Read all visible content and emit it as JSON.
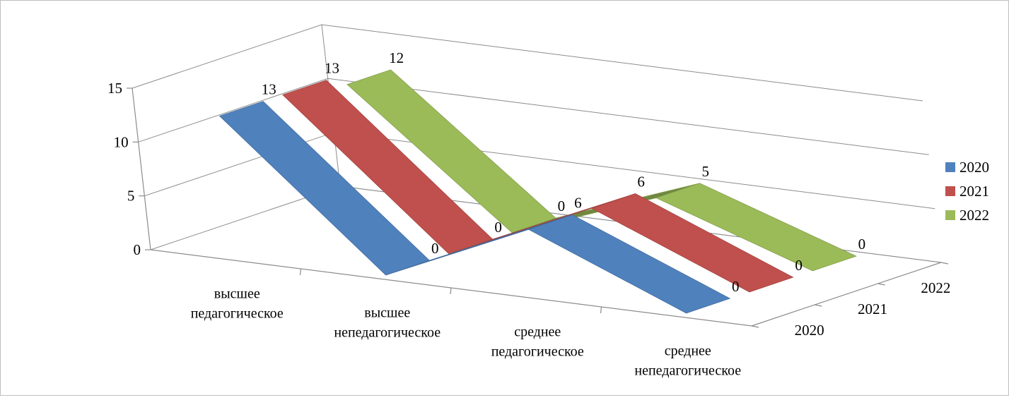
{
  "chart_data": {
    "type": "line",
    "style": "3d-ribbon",
    "categories": [
      "высшее педагогическое",
      "высшее непедагогическое",
      "среднее педагогическое",
      "среднее непедагогическое"
    ],
    "category_lines": [
      [
        "высшее",
        "педагогическое"
      ],
      [
        "высшее",
        "непедагогическое"
      ],
      [
        "среднее",
        "педагогическое"
      ],
      [
        "среднее",
        "непедагогическое"
      ]
    ],
    "series": [
      {
        "name": "2020",
        "values": [
          13,
          0,
          6,
          0
        ],
        "color": "#4F81BD"
      },
      {
        "name": "2021",
        "values": [
          13,
          0,
          6,
          0
        ],
        "color": "#C0504D"
      },
      {
        "name": "2022",
        "values": [
          12,
          0,
          5,
          0
        ],
        "color": "#9BBB59"
      }
    ],
    "depth_labels": [
      "2020",
      "2021",
      "2022"
    ],
    "y_ticks": [
      0,
      5,
      10,
      15
    ],
    "ylim": [
      0,
      15
    ],
    "grid": true,
    "legend_position": "right",
    "title": "",
    "xlabel": "",
    "ylabel": ""
  }
}
